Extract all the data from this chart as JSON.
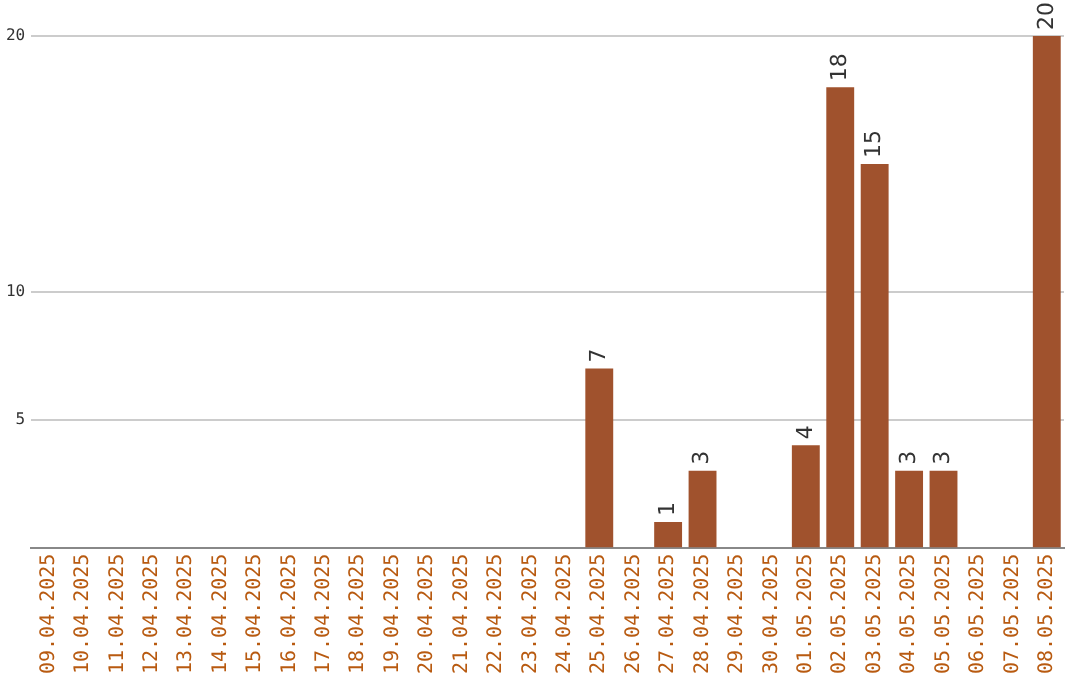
{
  "chart_data": {
    "type": "bar",
    "categories": [
      "09.04.2025",
      "10.04.2025",
      "11.04.2025",
      "12.04.2025",
      "13.04.2025",
      "14.04.2025",
      "15.04.2025",
      "16.04.2025",
      "17.04.2025",
      "18.04.2025",
      "19.04.2025",
      "20.04.2025",
      "21.04.2025",
      "22.04.2025",
      "23.04.2025",
      "24.04.2025",
      "25.04.2025",
      "26.04.2025",
      "27.04.2025",
      "28.04.2025",
      "29.04.2025",
      "30.04.2025",
      "01.05.2025",
      "02.05.2025",
      "03.05.2025",
      "04.05.2025",
      "05.05.2025",
      "06.05.2025",
      "07.05.2025",
      "08.05.2025"
    ],
    "values": [
      0,
      0,
      0,
      0,
      0,
      0,
      0,
      0,
      0,
      0,
      0,
      0,
      0,
      0,
      0,
      0,
      7,
      0,
      1,
      3,
      0,
      0,
      4,
      18,
      15,
      3,
      3,
      0,
      0,
      20
    ],
    "value_labels": [
      null,
      null,
      null,
      null,
      null,
      null,
      null,
      null,
      null,
      null,
      null,
      null,
      null,
      null,
      null,
      null,
      "7",
      null,
      "1",
      "3",
      null,
      null,
      "4",
      "18",
      "15",
      "3",
      "3",
      null,
      null,
      "20"
    ],
    "color": "#a0522d",
    "ylim": [
      0,
      20
    ],
    "yticks": [
      5,
      10,
      20
    ],
    "grid": "y",
    "legend": false
  }
}
